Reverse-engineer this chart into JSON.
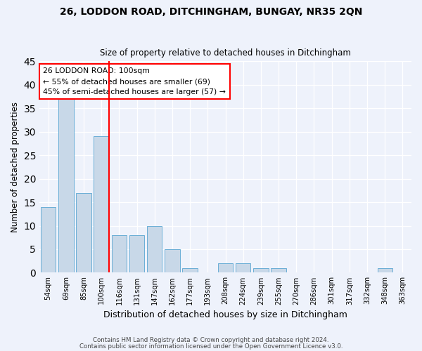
{
  "title1": "26, LODDON ROAD, DITCHINGHAM, BUNGAY, NR35 2QN",
  "title2": "Size of property relative to detached houses in Ditchingham",
  "xlabel": "Distribution of detached houses by size in Ditchingham",
  "ylabel": "Number of detached properties",
  "categories": [
    "54sqm",
    "69sqm",
    "85sqm",
    "100sqm",
    "116sqm",
    "131sqm",
    "147sqm",
    "162sqm",
    "177sqm",
    "193sqm",
    "208sqm",
    "224sqm",
    "239sqm",
    "255sqm",
    "270sqm",
    "286sqm",
    "301sqm",
    "317sqm",
    "332sqm",
    "348sqm",
    "363sqm"
  ],
  "values": [
    14,
    37,
    17,
    29,
    8,
    8,
    10,
    5,
    1,
    0,
    2,
    2,
    1,
    1,
    0,
    0,
    0,
    0,
    0,
    1,
    0
  ],
  "highlight_index": 3,
  "bar_color": "#c8d8e8",
  "bar_edge_color": "#6aaed6",
  "highlight_line_color": "red",
  "annotation_text": "26 LODDON ROAD: 100sqm\n← 55% of detached houses are smaller (69)\n45% of semi-detached houses are larger (57) →",
  "annotation_box_color": "white",
  "annotation_box_edge": "red",
  "ylim": [
    0,
    45
  ],
  "yticks": [
    0,
    5,
    10,
    15,
    20,
    25,
    30,
    35,
    40,
    45
  ],
  "footer1": "Contains HM Land Registry data © Crown copyright and database right 2024.",
  "footer2": "Contains public sector information licensed under the Open Government Licence v3.0.",
  "background_color": "#eef2fb",
  "grid_color": "white"
}
